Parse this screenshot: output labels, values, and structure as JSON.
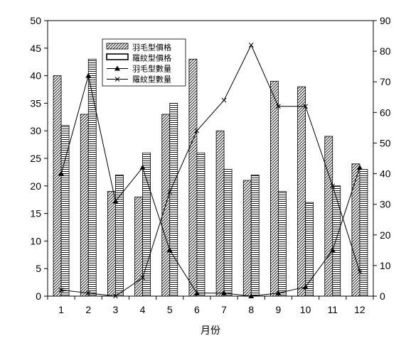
{
  "chart_data": {
    "type": "bar",
    "categories": [
      "1",
      "2",
      "3",
      "4",
      "5",
      "6",
      "7",
      "8",
      "9",
      "10",
      "11",
      "12"
    ],
    "xlabel": "月份",
    "y_left": {
      "ylim": [
        0,
        50
      ],
      "ticks": [
        0,
        5,
        10,
        15,
        20,
        25,
        30,
        35,
        40,
        45,
        50
      ]
    },
    "y_right": {
      "ylim": [
        0,
        90
      ],
      "ticks": [
        0,
        10,
        20,
        30,
        40,
        50,
        60,
        70,
        80,
        90
      ]
    },
    "legend_position": "top-center",
    "series": [
      {
        "name": "羽毛型價格",
        "kind": "bar",
        "axis": "left",
        "pattern": "diagonal",
        "values": [
          40,
          33,
          19,
          18,
          33,
          43,
          30,
          21,
          39,
          38,
          29,
          24
        ]
      },
      {
        "name": "羅紋型價格",
        "kind": "bar",
        "axis": "left",
        "pattern": "horizontal",
        "values": [
          31,
          43,
          22,
          26,
          35,
          26,
          23,
          22,
          19,
          17,
          20,
          23
        ]
      },
      {
        "name": "羽毛型數量",
        "kind": "line",
        "axis": "right",
        "marker": "triangle",
        "values": [
          40,
          72,
          31,
          42,
          15,
          1,
          1,
          0,
          1,
          3,
          15,
          42
        ]
      },
      {
        "name": "羅紋型數量",
        "kind": "line",
        "axis": "right",
        "marker": "x",
        "values": [
          2,
          1,
          0,
          6,
          34,
          54,
          64,
          82,
          62,
          62,
          36,
          8
        ]
      }
    ]
  }
}
